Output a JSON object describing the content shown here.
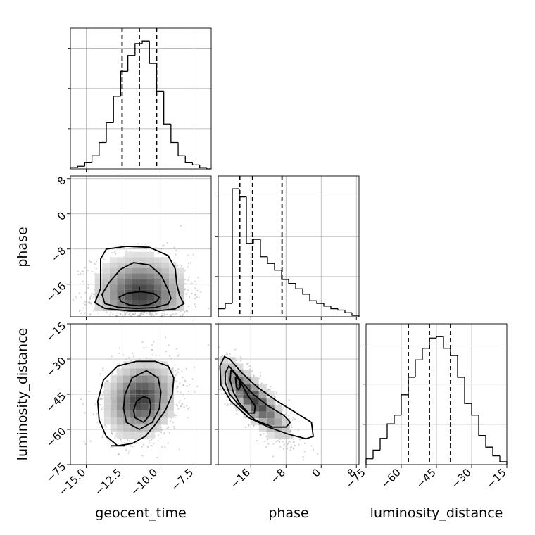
{
  "chart_data": {
    "type": "corner",
    "parameters": [
      "geocent_time",
      "phase",
      "luminosity_distance"
    ],
    "axis_ranges": {
      "geocent_time": [
        -16.1,
        -6.3
      ],
      "phase": [
        -23.4,
        8.6
      ],
      "luminosity_distance": [
        -75,
        -15
      ]
    },
    "ticks": {
      "geocent_time": [
        -15.0,
        -12.5,
        -10.0,
        -7.5
      ],
      "phase": [
        -16,
        -8,
        0,
        8
      ],
      "luminosity_distance": [
        -75,
        -60,
        -45,
        -30,
        -15
      ]
    },
    "tick_labels": {
      "geocent_time": [
        "−15.0",
        "−12.5",
        "−10.0",
        "−7.5"
      ],
      "phase": [
        "−16",
        "−8",
        "0",
        "8"
      ],
      "luminosity_distance": [
        "−75",
        "−60",
        "−45",
        "−30",
        "−15"
      ]
    },
    "quantiles": {
      "geocent_time": [
        -12.5,
        -11.3,
        -10.1
      ],
      "phase": [
        -18.5,
        -15.6,
        -8.9
      ],
      "luminosity_distance": [
        -57,
        -48,
        -39
      ]
    },
    "marginals": {
      "geocent_time": {
        "bins": [
          -16.1,
          -15.6,
          -15.1,
          -14.6,
          -14.1,
          -13.6,
          -13.1,
          -12.6,
          -12.1,
          -11.6,
          -11.1,
          -10.6,
          -10.1,
          -9.6,
          -9.1,
          -8.6,
          -8.1,
          -7.6,
          -7.1,
          -6.6,
          -6.3
        ],
        "counts": [
          1,
          2,
          5,
          10,
          20,
          35,
          55,
          74,
          86,
          95,
          97,
          80,
          59,
          34,
          20,
          10,
          5,
          3,
          1,
          0
        ]
      },
      "phase": {
        "bins": [
          -23.4,
          -21.8,
          -20.2,
          -18.6,
          -17.0,
          -15.4,
          -13.8,
          -12.2,
          -10.6,
          -9.0,
          -7.4,
          -5.8,
          -4.2,
          -2.6,
          -1.0,
          0.6,
          2.2,
          3.8,
          5.4,
          7.0,
          8.6
        ],
        "counts": [
          6,
          10,
          96,
          90,
          55,
          58,
          45,
          40,
          35,
          28,
          25,
          21,
          17,
          12,
          10,
          8,
          6,
          5,
          3,
          1
        ]
      },
      "luminosity_distance": {
        "bins": [
          -75,
          -72,
          -69,
          -66,
          -63,
          -60,
          -57,
          -54,
          -51,
          -48,
          -45,
          -42,
          -39,
          -36,
          -33,
          -30,
          -27,
          -24,
          -21,
          -18,
          -15
        ],
        "counts": [
          4,
          10,
          18,
          28,
          34,
          48,
          60,
          72,
          80,
          87,
          88,
          80,
          75,
          60,
          42,
          34,
          20,
          12,
          6,
          2
        ]
      }
    },
    "pairs": [
      {
        "x": "geocent_time",
        "y": "phase",
        "center": [
          -11.2,
          -18.2
        ],
        "spread": [
          1.7,
          4.5
        ],
        "corr": 0.0,
        "contours": [
          [
            [
              -12.6,
              -19.9
            ],
            [
              -12.0,
              -20.7
            ],
            [
              -11.3,
              -20.9
            ],
            [
              -10.6,
              -20.6
            ],
            [
              -10.1,
              -19.9
            ],
            [
              -9.9,
              -19.0
            ],
            [
              -10.3,
              -18.1
            ],
            [
              -11.2,
              -17.7
            ],
            [
              -12.1,
              -18.0
            ],
            [
              -12.7,
              -18.9
            ]
          ],
          [
            [
              -13.7,
              -20.4
            ],
            [
              -12.8,
              -21.2
            ],
            [
              -11.5,
              -21.5
            ],
            [
              -10.2,
              -21.3
            ],
            [
              -9.3,
              -20.5
            ],
            [
              -9.1,
              -19.2
            ],
            [
              -9.3,
              -17.2
            ],
            [
              -9.8,
              -13.9
            ],
            [
              -10.6,
              -11.6
            ],
            [
              -11.7,
              -11.1
            ],
            [
              -12.6,
              -12.6
            ],
            [
              -13.4,
              -15.6
            ],
            [
              -13.9,
              -18.3
            ]
          ],
          [
            [
              -14.4,
              -20.2
            ],
            [
              -13.7,
              -21.5
            ],
            [
              -12.0,
              -22.1
            ],
            [
              -10.2,
              -22.1
            ],
            [
              -8.8,
              -21.6
            ],
            [
              -8.2,
              -20.4
            ],
            [
              -8.5,
              -18.6
            ],
            [
              -8.7,
              -15.9
            ],
            [
              -8.8,
              -12.5
            ],
            [
              -9.3,
              -9.5
            ],
            [
              -10.6,
              -7.6
            ],
            [
              -12.2,
              -7.4
            ],
            [
              -13.6,
              -8.0
            ],
            [
              -14.0,
              -10.3
            ],
            [
              -14.0,
              -13.6
            ],
            [
              -14.0,
              -17.0
            ]
          ]
        ],
        "marker": [
          [
            -11.3,
            -17.4
          ],
          [
            -11.3,
            -16.6
          ]
        ]
      },
      {
        "x": "geocent_time",
        "y": "luminosity_distance",
        "center": [
          -11.2,
          -47
        ],
        "spread": [
          1.3,
          8.5
        ],
        "corr": 0.15,
        "contours": [
          [
            [
              -11.6,
              -55
            ],
            [
              -11.0,
              -57
            ],
            [
              -10.6,
              -54
            ],
            [
              -10.5,
              -50
            ],
            [
              -10.6,
              -47
            ],
            [
              -11.0,
              -46
            ],
            [
              -11.5,
              -48
            ],
            [
              -11.7,
              -52
            ]
          ],
          [
            [
              -12.2,
              -57
            ],
            [
              -11.3,
              -60
            ],
            [
              -10.4,
              -57
            ],
            [
              -9.9,
              -51
            ],
            [
              -9.8,
              -44
            ],
            [
              -10.0,
              -38
            ],
            [
              -10.8,
              -35
            ],
            [
              -11.8,
              -38
            ],
            [
              -12.3,
              -45
            ],
            [
              -12.4,
              -51
            ]
          ],
          [
            [
              -13.6,
              -63
            ],
            [
              -12.8,
              -67
            ],
            [
              -11.8,
              -66
            ],
            [
              -10.9,
              -63
            ],
            [
              -10.2,
              -58
            ],
            [
              -9.5,
              -52
            ],
            [
              -9.0,
              -45
            ],
            [
              -8.9,
              -38
            ],
            [
              -9.3,
              -33
            ],
            [
              -10.2,
              -31
            ],
            [
              -11.5,
              -31
            ],
            [
              -12.8,
              -33
            ],
            [
              -13.8,
              -39
            ],
            [
              -14.2,
              -48
            ],
            [
              -14.1,
              -56
            ]
          ]
        ],
        "marker": [
          [
            -13.3,
            -67
          ],
          [
            -12.3,
            -67
          ]
        ]
      },
      {
        "x": "phase",
        "y": "luminosity_distance",
        "center": [
          -15.5,
          -47
        ],
        "spread": [
          4.5,
          9.0
        ],
        "corr": -0.85,
        "contours": [
          [
            [
              -19.5,
              -38
            ],
            [
              -19.1,
              -37
            ],
            [
              -18.5,
              -39
            ],
            [
              -18.4,
              -42
            ],
            [
              -18.8,
              -43
            ],
            [
              -19.3,
              -42
            ]
          ],
          [
            [
              -20.5,
              -35
            ],
            [
              -19.7,
              -36
            ],
            [
              -18.0,
              -41
            ],
            [
              -16.5,
              -46
            ],
            [
              -15.0,
              -50
            ],
            [
              -15.2,
              -53
            ],
            [
              -16.5,
              -53
            ],
            [
              -18.5,
              -49
            ],
            [
              -20.0,
              -44
            ],
            [
              -20.7,
              -39
            ]
          ],
          [
            [
              -21.0,
              -33
            ],
            [
              -20.0,
              -35
            ],
            [
              -18.0,
              -40
            ],
            [
              -15.5,
              -45
            ],
            [
              -12.0,
              -50
            ],
            [
              -8.5,
              -54
            ],
            [
              -7.0,
              -57
            ],
            [
              -8.0,
              -59
            ],
            [
              -11.0,
              -59
            ],
            [
              -15.0,
              -56
            ],
            [
              -18.5,
              -50
            ],
            [
              -20.8,
              -45
            ],
            [
              -21.8,
              -40
            ],
            [
              -21.8,
              -36
            ]
          ],
          [
            [
              -22.0,
              -29
            ],
            [
              -20.8,
              -30
            ],
            [
              -18.0,
              -36
            ],
            [
              -14.5,
              -42
            ],
            [
              -10.0,
              -48
            ],
            [
              -6.5,
              -52
            ],
            [
              -2.2,
              -57
            ],
            [
              -1.8,
              -63
            ],
            [
              -3.5,
              -64
            ],
            [
              -7.5,
              -62
            ],
            [
              -12.0,
              -59
            ],
            [
              -16.5,
              -55
            ],
            [
              -20.5,
              -48
            ],
            [
              -22.8,
              -41
            ],
            [
              -23.0,
              -33
            ]
          ]
        ],
        "marker": [
          [
            -19.3,
            -38
          ],
          [
            -19.3,
            -41
          ]
        ]
      }
    ]
  }
}
